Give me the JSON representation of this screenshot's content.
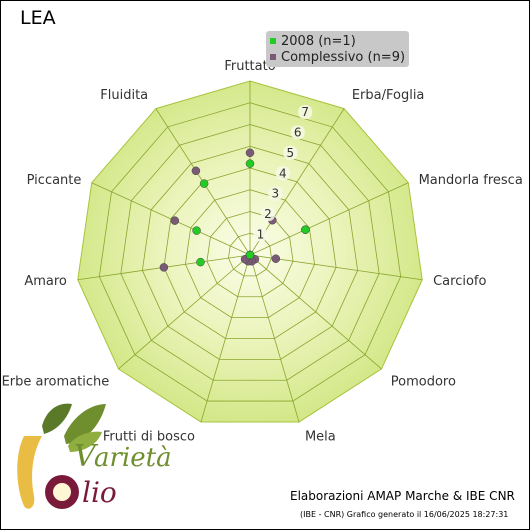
{
  "title": "LEA",
  "legend": [
    {
      "label": "2008 (n=1)",
      "color": "#22cc22"
    },
    {
      "label": "Complessivo (n=9)",
      "color": "#7b5a78"
    }
  ],
  "footer": {
    "credit": "Elaborazioni AMAP Marche & IBE CNR",
    "generated": "(IBE - CNR) Grafico generato il 16/06/2025 18:27:31"
  },
  "logo": {
    "word1": "arietà",
    "word2": "lio"
  },
  "chart_data": {
    "type": "radar",
    "categories": [
      "Fruttato",
      "Erba/Foglia",
      "Mandorla fresca",
      "Carciofo",
      "Pomodoro",
      "Mela",
      "Frutti di bosco",
      "Erbe aromatiche",
      "Amaro",
      "Piccante",
      "Fluidita"
    ],
    "rlim": [
      0,
      8
    ],
    "tick_labels": [
      "1",
      "2",
      "3",
      "4",
      "5",
      "6",
      "7"
    ],
    "series": [
      {
        "name": "2008 (n=1)",
        "values": [
          4.2,
          0.0,
          2.8,
          0.0,
          0.0,
          0.0,
          0.0,
          0.0,
          2.3,
          2.7,
          3.9
        ],
        "color": "#22cc22"
      },
      {
        "name": "Complessivo (n=9)",
        "values": [
          4.7,
          1.9,
          2.8,
          1.2,
          0.3,
          0.3,
          0.3,
          0.3,
          4.0,
          3.8,
          4.6
        ],
        "color": "#7b5a78"
      }
    ]
  }
}
